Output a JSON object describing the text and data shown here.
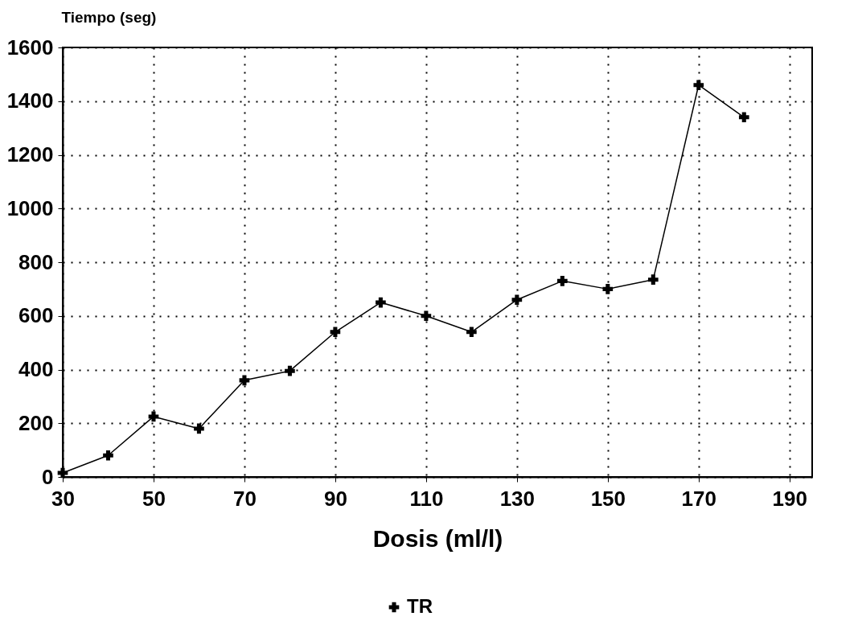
{
  "chart_data": {
    "type": "line",
    "xlabel": "Dosis (ml/l)",
    "ylabel": "Tiempo (seg)",
    "x": [
      30,
      40,
      50,
      60,
      70,
      80,
      90,
      100,
      110,
      120,
      130,
      140,
      150,
      160,
      170,
      180
    ],
    "series": [
      {
        "name": "TR",
        "color": "#000000",
        "values": [
          15,
          80,
          225,
          180,
          360,
          395,
          540,
          650,
          600,
          540,
          660,
          730,
          700,
          735,
          1460,
          1340
        ]
      }
    ],
    "xlim": [
      30,
      195
    ],
    "xticks": [
      30,
      50,
      70,
      90,
      110,
      130,
      150,
      170,
      190
    ],
    "ylim": [
      0,
      1600
    ],
    "yticks": [
      0,
      200,
      400,
      600,
      800,
      1000,
      1200,
      1400,
      1600
    ],
    "grid": true,
    "legend": "bottom",
    "marker": "cross",
    "line_style": "solid"
  }
}
